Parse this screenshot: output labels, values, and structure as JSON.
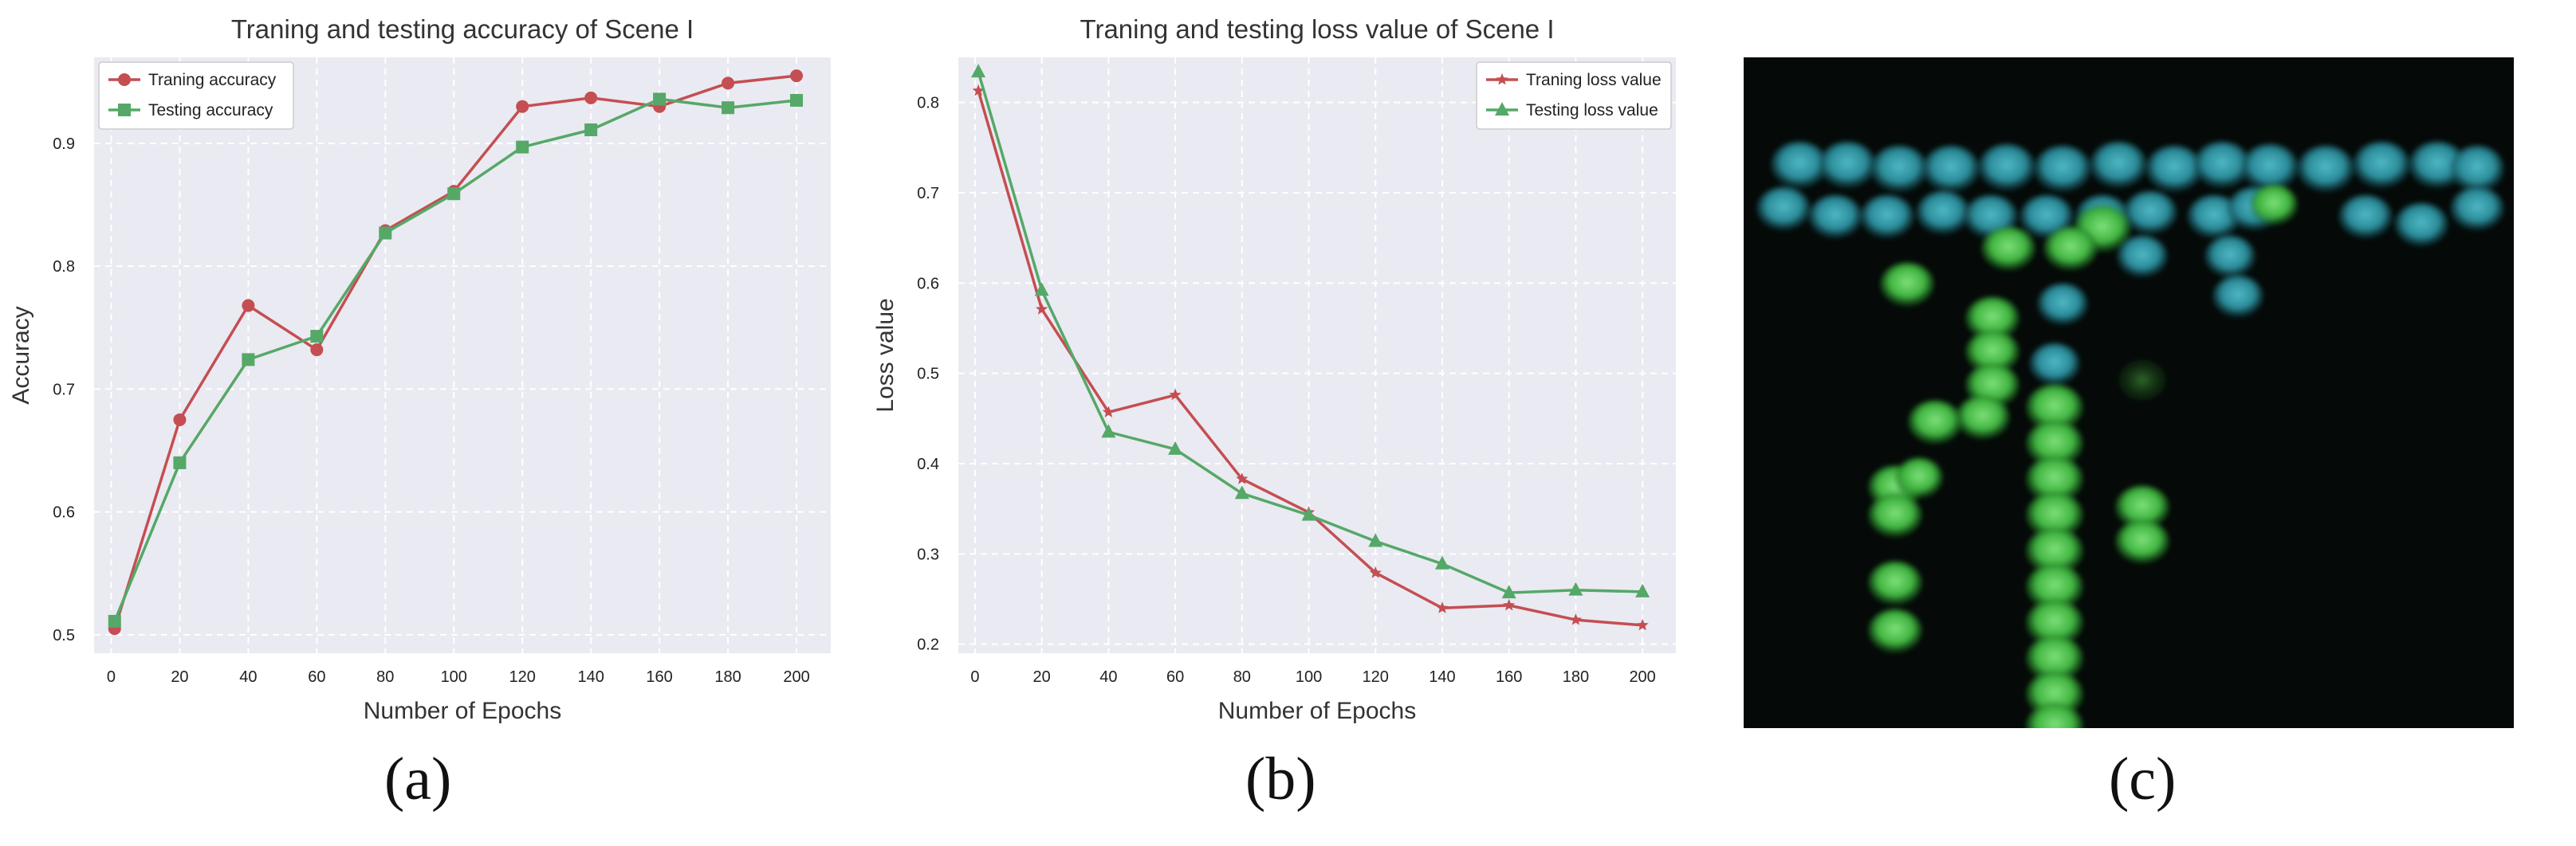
{
  "panel_labels": {
    "a": "(a)",
    "b": "(b)",
    "c": "(c)"
  },
  "colors": {
    "train": "#c44e52",
    "test": "#55a868"
  },
  "chart_data": [
    {
      "type": "line",
      "title": "Traning and testing accuracy of Scene I",
      "xlabel": "Number of Epochs",
      "ylabel": "Accuracy",
      "x": [
        1,
        20,
        40,
        60,
        80,
        100,
        120,
        140,
        160,
        180,
        200
      ],
      "xticks": [
        0,
        20,
        40,
        60,
        80,
        100,
        120,
        140,
        160,
        180,
        200
      ],
      "yticks": [
        0.5,
        0.6,
        0.7,
        0.8,
        0.9
      ],
      "xlim": [
        -5,
        210
      ],
      "ylim": [
        0.485,
        0.97
      ],
      "legend_position": "top-left",
      "series": [
        {
          "name": "Traning accuracy",
          "marker": "circle",
          "values": [
            0.505,
            0.675,
            0.768,
            0.732,
            0.829,
            0.861,
            0.93,
            0.937,
            0.93,
            0.949,
            0.955
          ]
        },
        {
          "name": "Testing accuracy",
          "marker": "square",
          "values": [
            0.511,
            0.64,
            0.724,
            0.743,
            0.827,
            0.859,
            0.897,
            0.911,
            0.936,
            0.929,
            0.935
          ]
        }
      ]
    },
    {
      "type": "line",
      "title": "Traning and testing loss value of Scene I",
      "xlabel": "Number of Epochs",
      "ylabel": "Loss value",
      "x": [
        1,
        20,
        40,
        60,
        80,
        100,
        120,
        140,
        160,
        180,
        200
      ],
      "xticks": [
        0,
        20,
        40,
        60,
        80,
        100,
        120,
        140,
        160,
        180,
        200
      ],
      "yticks": [
        0.2,
        0.3,
        0.4,
        0.5,
        0.6,
        0.7,
        0.8
      ],
      "xlim": [
        -5,
        210
      ],
      "ylim": [
        0.19,
        0.85
      ],
      "legend_position": "top-right",
      "series": [
        {
          "name": "Traning loss value",
          "marker": "star",
          "values": [
            0.813,
            0.571,
            0.457,
            0.476,
            0.383,
            0.346,
            0.279,
            0.24,
            0.243,
            0.227,
            0.221
          ]
        },
        {
          "name": "Testing loss value",
          "marker": "triangle",
          "values": [
            0.834,
            0.592,
            0.435,
            0.416,
            0.367,
            0.343,
            0.314,
            0.289,
            0.257,
            0.26,
            0.258
          ]
        }
      ]
    }
  ]
}
